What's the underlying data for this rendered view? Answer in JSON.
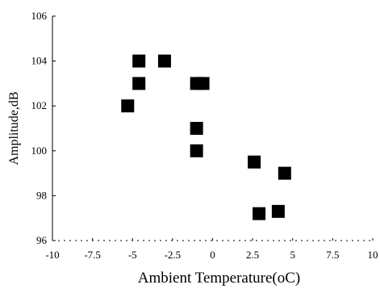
{
  "chart_data": {
    "type": "scatter",
    "title": "",
    "xlabel": "Ambient Temperature(oC)",
    "ylabel": "Amplitude,dB",
    "xlim": [
      -10,
      10
    ],
    "ylim": [
      96,
      106
    ],
    "x_ticks": [
      "-10",
      "-7.5",
      "-5",
      "-2.5",
      "0",
      "2.5",
      "5",
      "7.5",
      "10"
    ],
    "y_ticks": [
      "96",
      "98",
      "100",
      "102",
      "104",
      "106"
    ],
    "grid": false,
    "legend": "none",
    "marker": "filled-square",
    "marker_color": "#000000",
    "points": [
      {
        "x": -5.3,
        "y": 102
      },
      {
        "x": -4.6,
        "y": 104
      },
      {
        "x": -4.6,
        "y": 103
      },
      {
        "x": -3.0,
        "y": 104
      },
      {
        "x": -1.0,
        "y": 103
      },
      {
        "x": -0.6,
        "y": 103
      },
      {
        "x": -1.0,
        "y": 101
      },
      {
        "x": -1.0,
        "y": 100
      },
      {
        "x": 2.6,
        "y": 99.5
      },
      {
        "x": 4.5,
        "y": 99
      },
      {
        "x": 2.9,
        "y": 97.2
      },
      {
        "x": 4.1,
        "y": 97.3
      }
    ]
  }
}
